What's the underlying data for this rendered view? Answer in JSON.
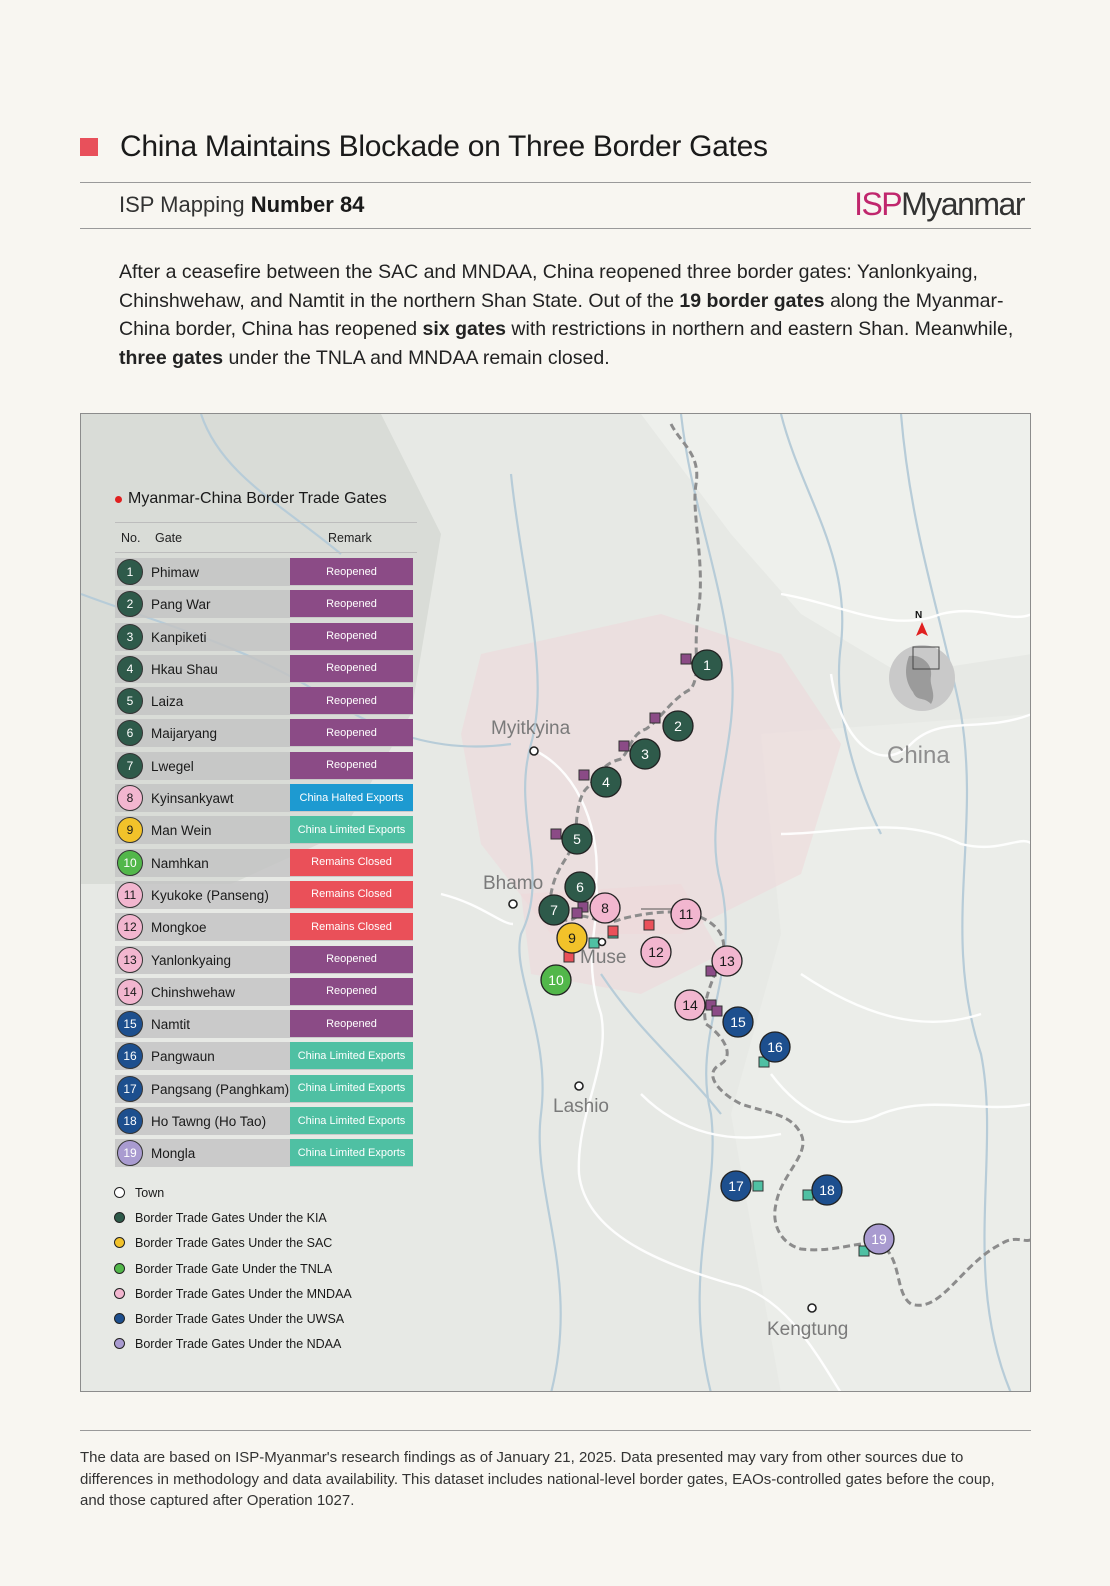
{
  "header": {
    "title": "China Maintains Blockade on Three Border Gates",
    "series_label": "ISP Mapping",
    "series_number": "Number 84",
    "logo_isp": "ISP",
    "logo_myanmar": "Myanmar"
  },
  "intro": {
    "p1": "After a ceasefire between the SAC and MNDAA, China reopened three border gates: Yanlonkyaing, Chinshwehaw, and Namtit in the northern Shan State. Out of the ",
    "b1": "19 border gates",
    "p2": " along the Myanmar-China border, China has reopened ",
    "b2": "six gates",
    "p3": " with restrictions in northern and eastern Shan. Meanwhile, ",
    "b3": "three gates",
    "p4": " under the TNLA and MNDAA remain closed."
  },
  "table": {
    "title": "Myanmar-China Border Trade Gates",
    "col_no": "No.",
    "col_gate": "Gate",
    "col_remark": "Remark",
    "rows": [
      {
        "no": "1",
        "gate": "Phimaw",
        "remark": "Reopened",
        "group": "KIA"
      },
      {
        "no": "2",
        "gate": "Pang War",
        "remark": "Reopened",
        "group": "KIA"
      },
      {
        "no": "3",
        "gate": "Kanpiketi",
        "remark": "Reopened",
        "group": "KIA"
      },
      {
        "no": "4",
        "gate": "Hkau Shau",
        "remark": "Reopened",
        "group": "KIA"
      },
      {
        "no": "5",
        "gate": "Laiza",
        "remark": "Reopened",
        "group": "KIA"
      },
      {
        "no": "6",
        "gate": "Maijaryang",
        "remark": "Reopened",
        "group": "KIA"
      },
      {
        "no": "7",
        "gate": "Lwegel",
        "remark": "Reopened",
        "group": "KIA"
      },
      {
        "no": "8",
        "gate": "Kyinsankyawt",
        "remark": "China Halted Exports",
        "group": "MNDAA"
      },
      {
        "no": "9",
        "gate": "Man Wein",
        "remark": "China Limited Exports",
        "group": "SAC"
      },
      {
        "no": "10",
        "gate": "Namhkan",
        "remark": "Remains Closed",
        "group": "TNLA"
      },
      {
        "no": "11",
        "gate": "Kyukoke (Panseng)",
        "remark": "Remains Closed",
        "group": "MNDAA"
      },
      {
        "no": "12",
        "gate": "Mongkoe",
        "remark": "Remains Closed",
        "group": "MNDAA"
      },
      {
        "no": "13",
        "gate": "Yanlonkyaing",
        "remark": "Reopened",
        "group": "MNDAA"
      },
      {
        "no": "14",
        "gate": "Chinshwehaw",
        "remark": "Reopened",
        "group": "MNDAA"
      },
      {
        "no": "15",
        "gate": "Namtit",
        "remark": "Reopened",
        "group": "UWSA"
      },
      {
        "no": "16",
        "gate": "Pangwaun",
        "remark": "China Limited Exports",
        "group": "UWSA"
      },
      {
        "no": "17",
        "gate": "Pangsang (Panghkam)",
        "remark": "China Limited Exports",
        "group": "UWSA"
      },
      {
        "no": "18",
        "gate": "Ho Tawng (Ho Tao)",
        "remark": "China Limited Exports",
        "group": "UWSA"
      },
      {
        "no": "19",
        "gate": "Mongla",
        "remark": "China Limited Exports",
        "group": "NDAA"
      }
    ]
  },
  "legend": [
    {
      "key": "TOWN",
      "label": "Town"
    },
    {
      "key": "KIA",
      "label": "Border Trade Gates Under the KIA"
    },
    {
      "key": "SAC",
      "label": "Border Trade Gates Under the SAC"
    },
    {
      "key": "TNLA",
      "label": "Border Trade Gate Under the TNLA"
    },
    {
      "key": "MNDAA",
      "label": "Border Trade Gates Under the MNDAA"
    },
    {
      "key": "UWSA",
      "label": "Border Trade Gates Under the UWSA"
    },
    {
      "key": "NDAA",
      "label": "Border Trade Gates Under the NDAA"
    }
  ],
  "group_colors": {
    "TOWN": "#ffffff",
    "KIA": "#2e5a4a",
    "SAC": "#f2c22a",
    "TNLA": "#52b74a",
    "MNDAA": "#f2b6cf",
    "UWSA": "#1d4f8e",
    "NDAA": "#a99bd0"
  },
  "group_text_colors": {
    "KIA": "#ffffff",
    "SAC": "#1a1a1a",
    "TNLA": "#ffffff",
    "MNDAA": "#1a1a1a",
    "UWSA": "#ffffff",
    "NDAA": "#ffffff"
  },
  "remark_colors": {
    "Reopened": "#8b4b86",
    "China Halted Exports": "#1d9ad1",
    "China Limited Exports": "#4fc0a3",
    "Remains Closed": "#ea5059"
  },
  "map": {
    "places": {
      "myitkyina": "Myitkyina",
      "bhamo": "Bhamo",
      "muse": "Muse",
      "lashio": "Lashio",
      "kengtung": "Kengtung"
    },
    "country": "China",
    "north": "N"
  },
  "footer": "The data are based on ISP-Myanmar's research findings as of January 21, 2025. Data presented may vary from other sources due to differences in methodology and data availability. This dataset includes national-level border gates, EAOs-controlled gates before the coup, and those captured after Operation 1027."
}
